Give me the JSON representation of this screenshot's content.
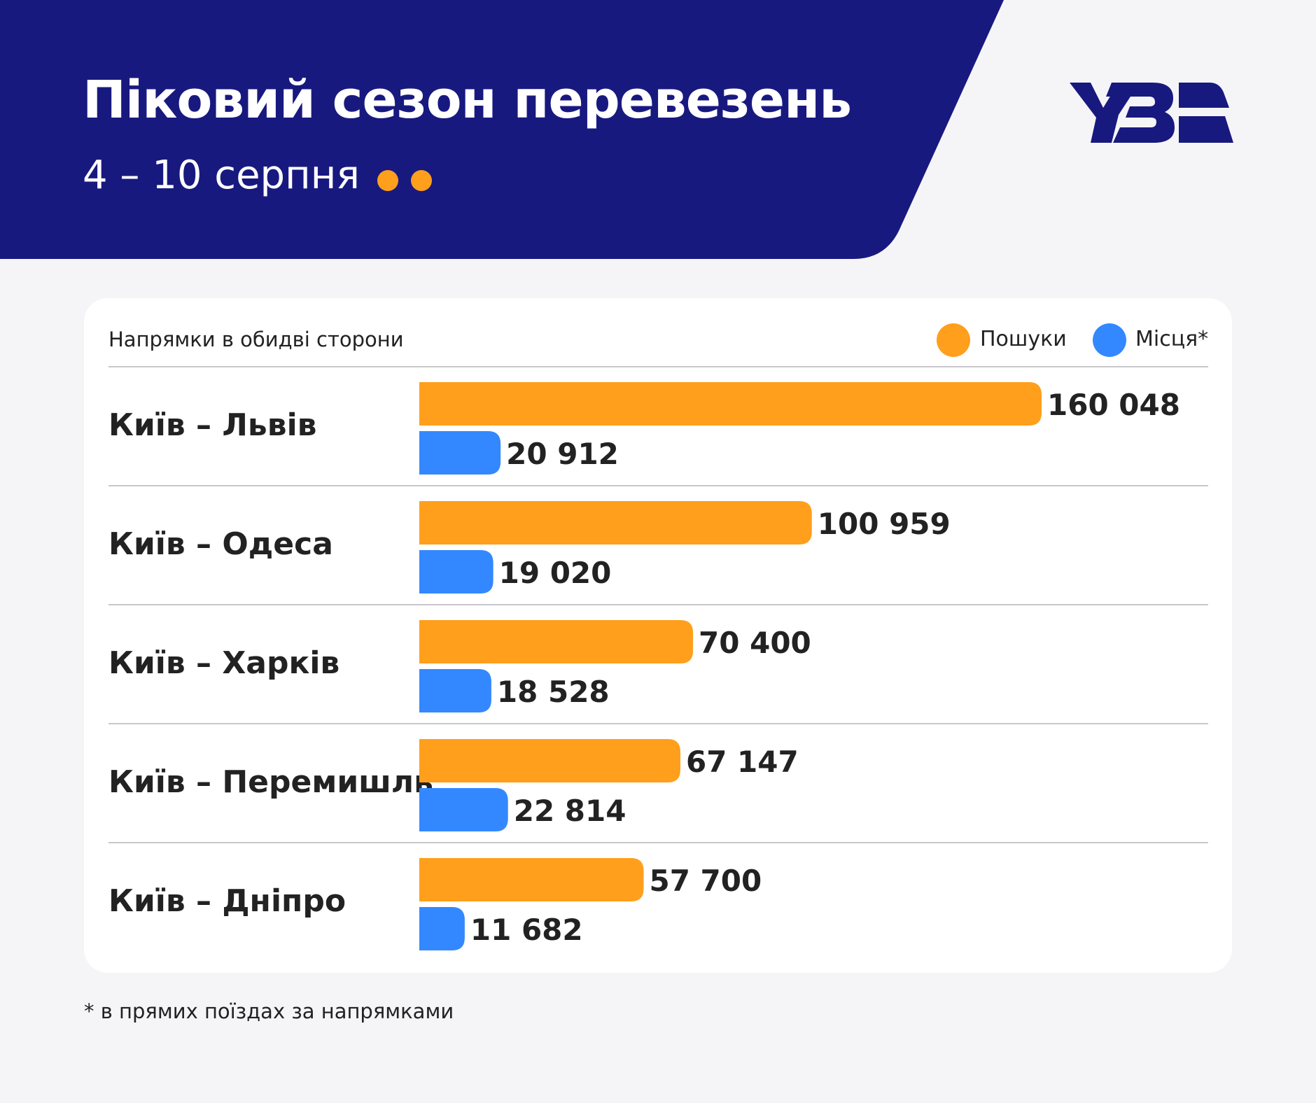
{
  "header": {
    "title": "Піковий сезон перевезень",
    "subtitle": "4 – 10 серпня",
    "brand_color": "#18197f",
    "logo_text": "УЗ"
  },
  "card": {
    "label": "Напрямки в обидві сторони",
    "legend": [
      {
        "label": "Пошуки",
        "color": "#ff9f1c"
      },
      {
        "label": "Місця*",
        "color": "#3388ff"
      }
    ]
  },
  "footnote": "* в прямих поїздах за напрямками",
  "chart_data": {
    "type": "bar",
    "orientation": "horizontal",
    "categories": [
      "Київ – Львів",
      "Київ – Одеса",
      "Київ – Харків",
      "Київ – Перемишль",
      "Київ – Дніпро"
    ],
    "series": [
      {
        "name": "Пошуки",
        "color": "#ff9f1c",
        "values": [
          160048,
          100959,
          70400,
          67147,
          57700
        ],
        "labels": [
          "160 048",
          "100 959",
          "70 400",
          "67 147",
          "57 700"
        ]
      },
      {
        "name": "Місця*",
        "color": "#3388ff",
        "values": [
          20912,
          19020,
          18528,
          22814,
          11682
        ],
        "labels": [
          "20 912",
          "19 020",
          "18 528",
          "22 814",
          "11 682"
        ]
      }
    ],
    "title": "Напрямки в обидві сторони",
    "legend_position": "top-right",
    "grid": false
  }
}
